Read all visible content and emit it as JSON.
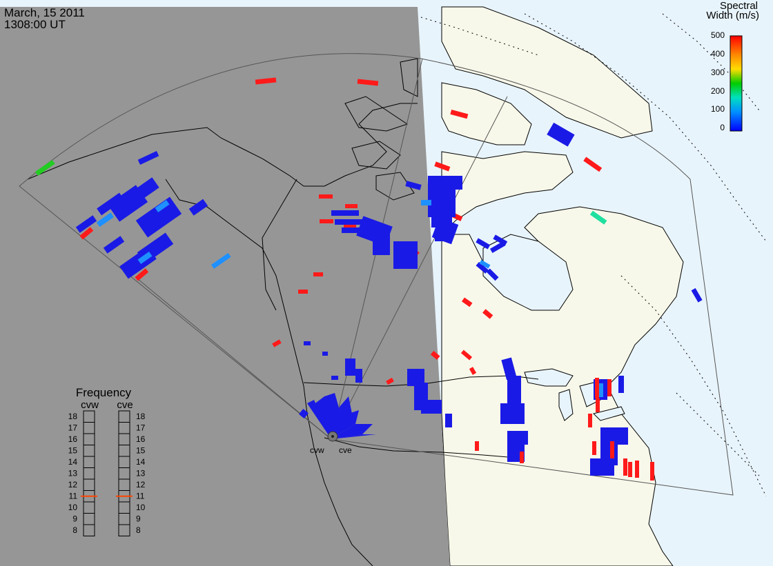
{
  "header": {
    "date": "March, 15 2011",
    "time": "1308:00 UT"
  },
  "legend": {
    "title_line1": "Spectral",
    "title_line2": "Width (m/s)",
    "ticks": [
      "500",
      "400",
      "300",
      "200",
      "100",
      "0"
    ],
    "colors": [
      "#ff0000",
      "#ff8800",
      "#ffdd00",
      "#00cc00",
      "#00e0c0",
      "#0060ff",
      "#0000ff"
    ]
  },
  "frequency_panel": {
    "title": "Frequency",
    "radars": [
      {
        "label": "cvw",
        "selected": "11"
      },
      {
        "label": "cve",
        "selected": "11"
      }
    ],
    "levels": [
      "18",
      "17",
      "16",
      "15",
      "14",
      "13",
      "12",
      "11",
      "10",
      "9",
      "8"
    ],
    "marker_color": "#ff4400"
  },
  "stations": {
    "cvw_label": "cvw",
    "cve_label": "cve"
  },
  "colors": {
    "night": "#969696",
    "day_ocean": "#e8f4fb",
    "day_land": "#f8f8ea",
    "low_width": "#1a1ae6",
    "mid_width": "#1e90ff",
    "high_width": "#ff1a1a"
  }
}
